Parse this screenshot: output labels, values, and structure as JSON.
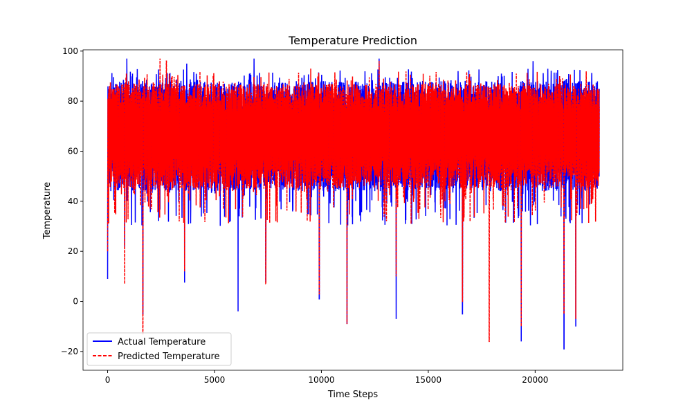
{
  "chart_data": {
    "type": "line",
    "title": "Temperature Prediction",
    "xlabel": "Time Steps",
    "ylabel": "Temperature",
    "xlim": [
      -1150,
      24100
    ],
    "ylim": [
      -27.5,
      100.5
    ],
    "x_ticks": [
      0,
      5000,
      10000,
      15000,
      20000
    ],
    "x_tick_labels": [
      "0",
      "5000",
      "10000",
      "15000",
      "20000"
    ],
    "y_ticks": [
      -20,
      0,
      20,
      40,
      60,
      80,
      100
    ],
    "y_tick_labels": [
      "−20",
      "0",
      "20",
      "40",
      "60",
      "80",
      "100"
    ],
    "grid": false,
    "legend": "lower-left",
    "x_range": [
      0,
      23000
    ],
    "series": [
      {
        "name": "Actual Temperature",
        "color": "#0000ff",
        "style": "solid",
        "typical_band": [
          44,
          88
        ],
        "low_spikes": [
          [
            0,
            9
          ],
          [
            800,
            22
          ],
          [
            1650,
            -5
          ],
          [
            3600,
            7.5
          ],
          [
            6100,
            -4
          ],
          [
            7400,
            8
          ],
          [
            9900,
            1
          ],
          [
            11200,
            -9
          ],
          [
            13500,
            -7
          ],
          [
            16600,
            -5
          ],
          [
            19350,
            -16
          ],
          [
            21350,
            -19
          ],
          [
            21900,
            -10
          ]
        ],
        "high_spikes": [
          [
            900,
            97
          ],
          [
            6850,
            97
          ],
          [
            12700,
            97
          ],
          [
            19900,
            96
          ],
          [
            3700,
            95
          ]
        ]
      },
      {
        "name": "Predicted Temperature",
        "color": "#ff0000",
        "style": "dashed",
        "typical_band": [
          45,
          87
        ],
        "low_spikes": [
          [
            0,
            20
          ],
          [
            800,
            7
          ],
          [
            1650,
            -13
          ],
          [
            3600,
            12
          ],
          [
            7400,
            7
          ],
          [
            9900,
            3
          ],
          [
            11200,
            -9
          ],
          [
            13500,
            10
          ],
          [
            16600,
            0
          ],
          [
            17850,
            -16
          ],
          [
            19350,
            -10
          ],
          [
            21350,
            -5
          ],
          [
            21900,
            -7
          ]
        ],
        "high_spikes": [
          [
            2450,
            97
          ],
          [
            2750,
            96
          ],
          [
            12700,
            96
          ],
          [
            9500,
            93
          ]
        ]
      }
    ]
  }
}
